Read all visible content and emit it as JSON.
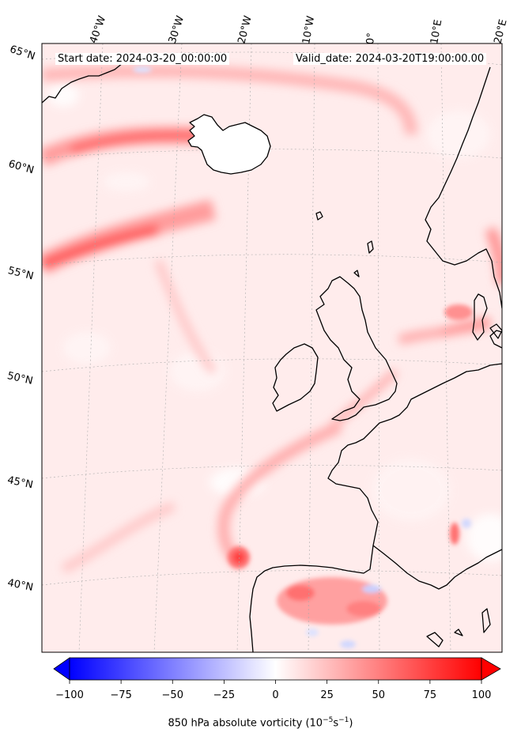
{
  "header": {
    "start_date": "Start date: 2024-03-20_00:00:00",
    "valid_date": "Valid_date: 2024-03-20T19:00:00.00"
  },
  "longitude_labels": [
    "40°W",
    "30°W",
    "20°W",
    "10°W",
    "0°",
    "10°E",
    "20°E"
  ],
  "latitude_labels": [
    "65°N",
    "60°N",
    "55°N",
    "50°N",
    "45°N",
    "40°N"
  ],
  "colorbar": {
    "ticks": [
      "−100",
      "−75",
      "−50",
      "−25",
      "0",
      "25",
      "50",
      "75",
      "100"
    ],
    "min": -100,
    "max": 100,
    "label_main": "850 hPa absolute vorticity (10",
    "label_exp1": "−5",
    "label_mid": "s",
    "label_exp2": "−1",
    "label_end": ")",
    "colors": {
      "negative": "#0000ff",
      "zero": "#ffffff",
      "positive": "#ff0000"
    }
  },
  "map": {
    "background": "#ffecec",
    "coastline_color": "#000000",
    "gridline_color": "#999999"
  }
}
